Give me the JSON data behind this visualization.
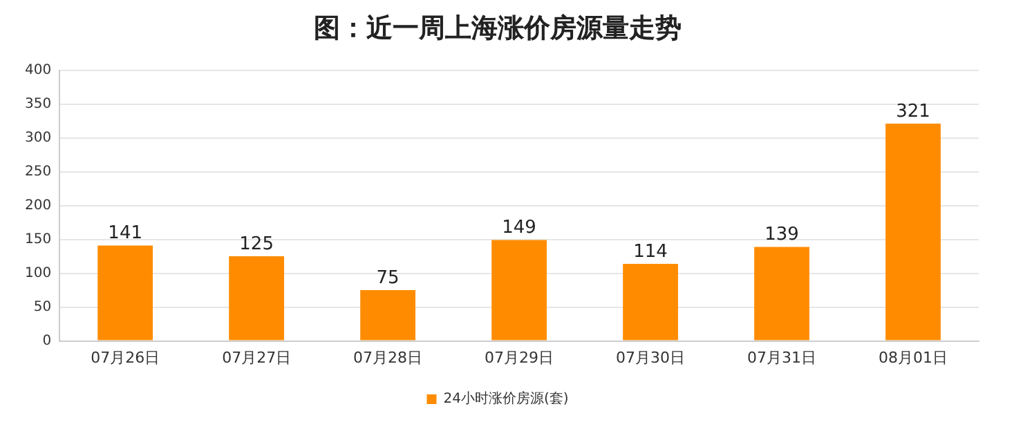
{
  "chart_data": {
    "type": "bar",
    "title": "图：近一周上海涨价房源量走势",
    "categories": [
      "07月26日",
      "07月27日",
      "07月28日",
      "07月29日",
      "07月30日",
      "07月31日",
      "08月01日"
    ],
    "series": [
      {
        "name": "24小时涨价房源(套)",
        "color": "#ff8c00",
        "values": [
          141,
          125,
          75,
          149,
          114,
          139,
          321
        ]
      }
    ],
    "ylim": [
      0,
      400
    ],
    "yticks": [
      0,
      50,
      100,
      150,
      200,
      250,
      300,
      350,
      400
    ],
    "grid": "y",
    "legend": "bottom",
    "data_labels": true
  }
}
